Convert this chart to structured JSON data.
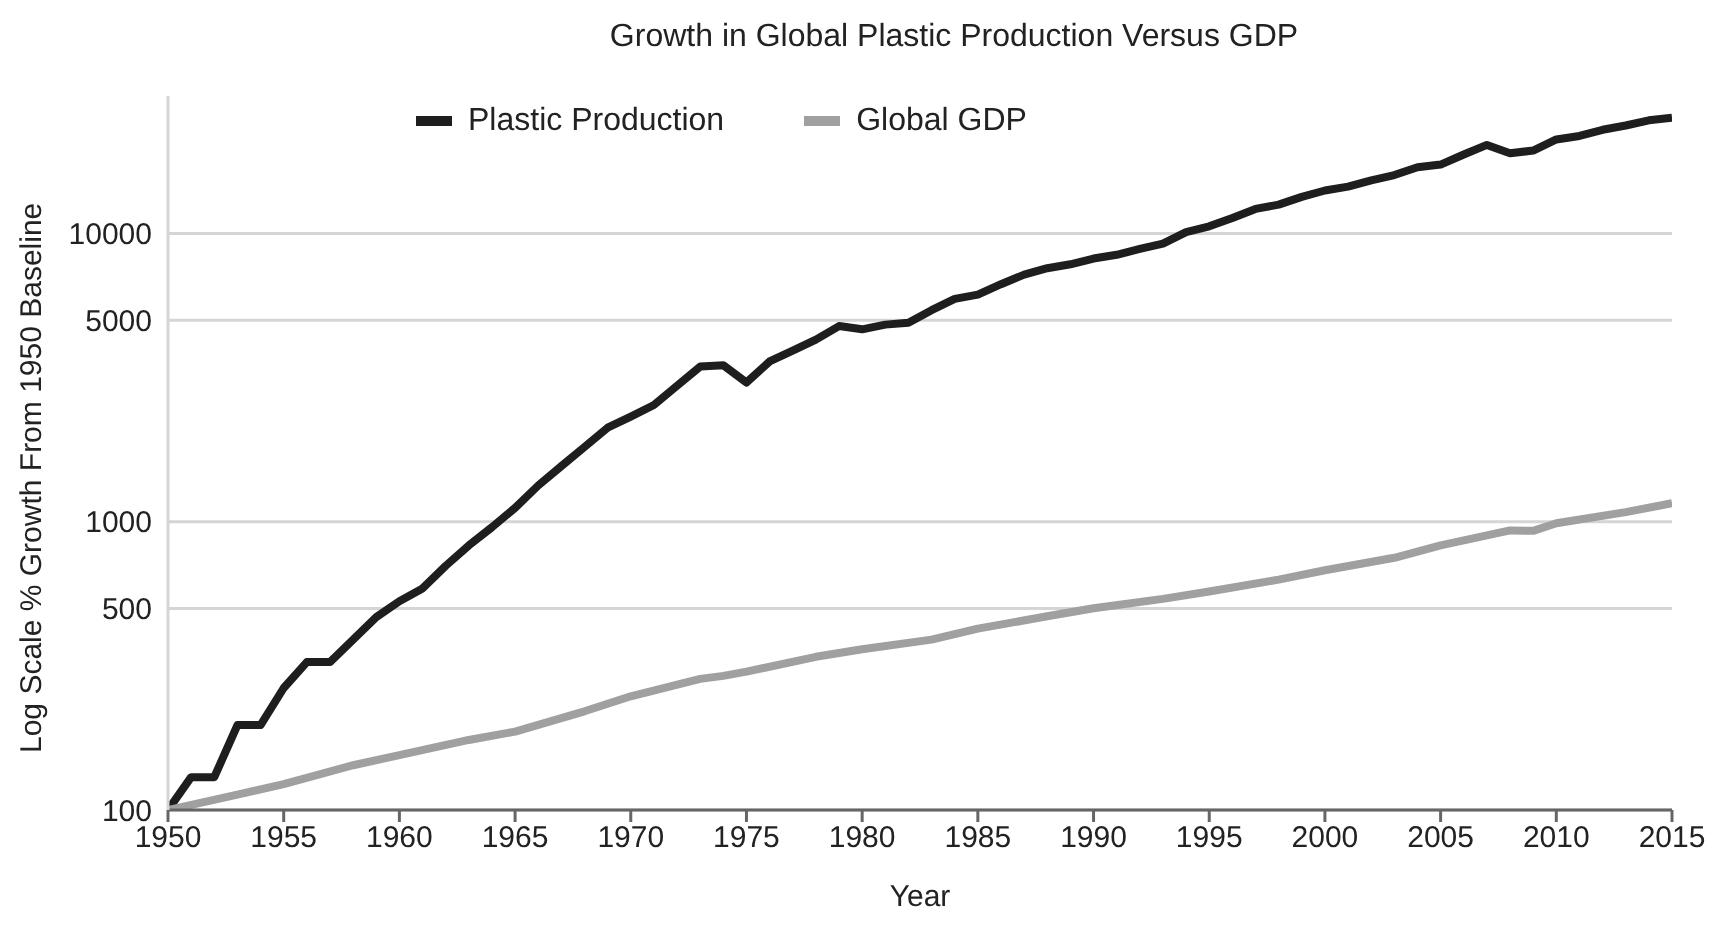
{
  "chart_data": {
    "type": "line",
    "title": "Growth in Global Plastic Production Versus GDP",
    "xlabel": "Year",
    "ylabel": "Log Scale % Growth From 1950 Baseline",
    "log": "y",
    "grid": "y",
    "legend": "top",
    "marker": "none",
    "line_style": "solid",
    "xlim": [
      1950,
      2015
    ],
    "xticks": [
      1950,
      1955,
      1960,
      1965,
      1970,
      1975,
      1980,
      1985,
      1990,
      1995,
      2000,
      2005,
      2010,
      2015
    ],
    "ylim": [
      100,
      30000
    ],
    "yticks": [
      100,
      500,
      1000,
      5000,
      10000
    ],
    "series": [
      {
        "name": "Plastic Production",
        "color": "#1e1e1e",
        "x": [
          1950,
          1951,
          1952,
          1953,
          1954,
          1955,
          1956,
          1957,
          1958,
          1959,
          1960,
          1961,
          1962,
          1963,
          1964,
          1965,
          1966,
          1967,
          1968,
          1969,
          1970,
          1971,
          1972,
          1973,
          1974,
          1975,
          1976,
          1977,
          1978,
          1979,
          1980,
          1981,
          1982,
          1983,
          1984,
          1985,
          1986,
          1987,
          1988,
          1989,
          1990,
          1991,
          1992,
          1993,
          1994,
          1995,
          1996,
          1997,
          1998,
          1999,
          2000,
          2001,
          2002,
          2003,
          2004,
          2005,
          2006,
          2007,
          2008,
          2009,
          2010,
          2011,
          2012,
          2013,
          2014,
          2015
        ],
        "values": [
          100,
          130,
          130,
          197,
          197,
          265,
          326,
          326,
          390,
          467,
          530,
          587,
          703,
          828,
          957,
          1117,
          1336,
          1559,
          1817,
          2120,
          2316,
          2541,
          2963,
          3454,
          3491,
          3041,
          3598,
          3923,
          4285,
          4774,
          4652,
          4830,
          4900,
          5420,
          5930,
          6140,
          6670,
          7200,
          7580,
          7820,
          8190,
          8440,
          8840,
          9220,
          10110,
          10590,
          11320,
          12170,
          12600,
          13400,
          14100,
          14550,
          15300,
          15950,
          16980,
          17350,
          18800,
          20300,
          19000,
          19400,
          21200,
          21800,
          22900,
          23700,
          24700,
          25200
        ]
      },
      {
        "name": "Global GDP",
        "color": "#a0a0a0",
        "x": [
          1950,
          1953,
          1955,
          1958,
          1960,
          1963,
          1965,
          1968,
          1970,
          1973,
          1974,
          1975,
          1978,
          1980,
          1983,
          1985,
          1988,
          1990,
          1993,
          1995,
          1998,
          2000,
          2003,
          2005,
          2008,
          2009,
          2010,
          2013,
          2015
        ],
        "values": [
          100,
          113,
          123,
          143,
          155,
          175,
          187,
          220,
          248,
          285,
          292,
          302,
          340,
          361,
          390,
          426,
          470,
          501,
          540,
          573,
          630,
          679,
          750,
          828,
          933,
          930,
          988,
          1080,
          1159
        ]
      }
    ]
  }
}
